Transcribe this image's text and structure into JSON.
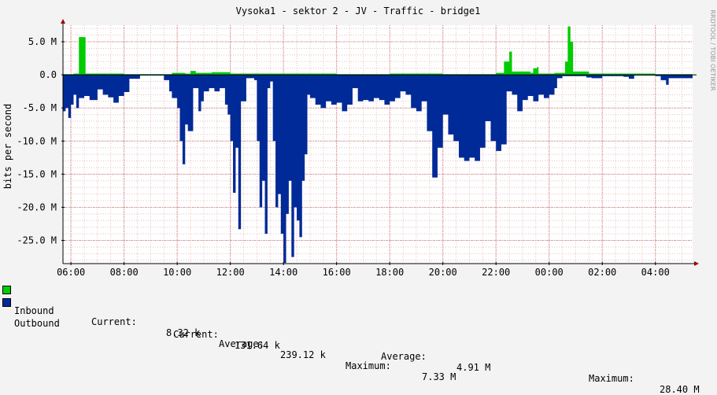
{
  "chart_data": {
    "type": "area",
    "title": "Vysoka1 - sektor 2 - JV - Traffic - bridge1",
    "ylabel": "bits per second",
    "watermark": "RRDTOOL / TOBI OETIKER",
    "ylim": [
      -28.5,
      7.5
    ],
    "yticks": [
      {
        "v": 5,
        "label": "5.0 M"
      },
      {
        "v": 0,
        "label": "0.0"
      },
      {
        "v": -5,
        "label": "-5.0 M"
      },
      {
        "v": -10,
        "label": "-10.0 M"
      },
      {
        "v": -15,
        "label": "-15.0 M"
      },
      {
        "v": -20,
        "label": "-20.0 M"
      },
      {
        "v": -25,
        "label": "-25.0 M"
      }
    ],
    "xlim": [
      5.7,
      29.4
    ],
    "xticks": [
      {
        "v": 6,
        "label": "06:00"
      },
      {
        "v": 8,
        "label": "08:00"
      },
      {
        "v": 10,
        "label": "10:00"
      },
      {
        "v": 12,
        "label": "12:00"
      },
      {
        "v": 14,
        "label": "14:00"
      },
      {
        "v": 16,
        "label": "16:00"
      },
      {
        "v": 18,
        "label": "18:00"
      },
      {
        "v": 20,
        "label": "20:00"
      },
      {
        "v": 22,
        "label": "22:00"
      },
      {
        "v": 24,
        "label": "00:00"
      },
      {
        "v": 26,
        "label": "02:00"
      },
      {
        "v": 28,
        "label": "04:00"
      }
    ],
    "series": [
      {
        "name": "Inbound",
        "color": "#00cc00",
        "points": [
          [
            5.7,
            0.1
          ],
          [
            6.1,
            0.2
          ],
          [
            6.3,
            5.7
          ],
          [
            6.45,
            5.7
          ],
          [
            6.55,
            0.2
          ],
          [
            7.5,
            0.2
          ],
          [
            8.0,
            0.1
          ],
          [
            9.4,
            0.1
          ],
          [
            9.8,
            0.3
          ],
          [
            10.3,
            0.2
          ],
          [
            10.5,
            0.6
          ],
          [
            10.7,
            0.3
          ],
          [
            11.3,
            0.4
          ],
          [
            12.0,
            0.2
          ],
          [
            14.0,
            0.2
          ],
          [
            16.0,
            0.1
          ],
          [
            18.0,
            0.2
          ],
          [
            20.0,
            0.1
          ],
          [
            22.0,
            0.3
          ],
          [
            22.3,
            2.0
          ],
          [
            22.5,
            3.5
          ],
          [
            22.6,
            0.5
          ],
          [
            23.3,
            0.3
          ],
          [
            23.4,
            1.0
          ],
          [
            23.55,
            1.2
          ],
          [
            23.6,
            0.2
          ],
          [
            24.2,
            0.3
          ],
          [
            24.5,
            0.3
          ],
          [
            24.6,
            2.0
          ],
          [
            24.7,
            7.3
          ],
          [
            24.8,
            5.0
          ],
          [
            24.9,
            0.5
          ],
          [
            25.5,
            0.2
          ],
          [
            28.0,
            0.1
          ],
          [
            29.4,
            0.0
          ]
        ]
      },
      {
        "name": "Outbound",
        "color": "#002a97",
        "points": [
          [
            5.7,
            -5.5
          ],
          [
            5.8,
            -5.0
          ],
          [
            5.9,
            -6.5
          ],
          [
            6.0,
            -4.5
          ],
          [
            6.1,
            -3.0
          ],
          [
            6.2,
            -5.0
          ],
          [
            6.3,
            -3.5
          ],
          [
            6.5,
            -3.2
          ],
          [
            6.7,
            -3.8
          ],
          [
            7.0,
            -2.2
          ],
          [
            7.2,
            -3.0
          ],
          [
            7.4,
            -3.4
          ],
          [
            7.6,
            -4.2
          ],
          [
            7.8,
            -3.2
          ],
          [
            8.0,
            -2.6
          ],
          [
            8.2,
            -0.6
          ],
          [
            8.6,
            -0.1
          ],
          [
            9.3,
            -0.1
          ],
          [
            9.5,
            -0.8
          ],
          [
            9.7,
            -2.5
          ],
          [
            9.8,
            -3.5
          ],
          [
            10.0,
            -5.0
          ],
          [
            10.1,
            -10.0
          ],
          [
            10.2,
            -13.5
          ],
          [
            10.3,
            -7.5
          ],
          [
            10.4,
            -8.5
          ],
          [
            10.6,
            -2.0
          ],
          [
            10.8,
            -5.5
          ],
          [
            10.9,
            -4.0
          ],
          [
            11.0,
            -2.5
          ],
          [
            11.2,
            -2.0
          ],
          [
            11.4,
            -2.5
          ],
          [
            11.6,
            -2.0
          ],
          [
            11.8,
            -4.5
          ],
          [
            11.9,
            -6.0
          ],
          [
            12.0,
            -10.0
          ],
          [
            12.1,
            -17.8
          ],
          [
            12.2,
            -11.0
          ],
          [
            12.3,
            -23.3
          ],
          [
            12.4,
            -4.0
          ],
          [
            12.6,
            -0.5
          ],
          [
            12.9,
            -0.8
          ],
          [
            13.0,
            -10.0
          ],
          [
            13.1,
            -20.0
          ],
          [
            13.2,
            -16.0
          ],
          [
            13.3,
            -24.0
          ],
          [
            13.4,
            -2.0
          ],
          [
            13.5,
            -1.0
          ],
          [
            13.6,
            -10.0
          ],
          [
            13.7,
            -20.0
          ],
          [
            13.8,
            -18.0
          ],
          [
            13.9,
            -24.0
          ],
          [
            14.0,
            -28.4
          ],
          [
            14.1,
            -21.0
          ],
          [
            14.2,
            -16.0
          ],
          [
            14.3,
            -27.5
          ],
          [
            14.4,
            -20.0
          ],
          [
            14.5,
            -22.0
          ],
          [
            14.6,
            -24.5
          ],
          [
            14.7,
            -16.0
          ],
          [
            14.8,
            -12.0
          ],
          [
            14.9,
            -3.0
          ],
          [
            15.0,
            -3.5
          ],
          [
            15.2,
            -4.5
          ],
          [
            15.4,
            -5.0
          ],
          [
            15.6,
            -4.0
          ],
          [
            15.8,
            -4.5
          ],
          [
            16.0,
            -4.2
          ],
          [
            16.2,
            -5.5
          ],
          [
            16.4,
            -4.5
          ],
          [
            16.6,
            -2.0
          ],
          [
            16.8,
            -4.0
          ],
          [
            17.0,
            -3.8
          ],
          [
            17.2,
            -4.0
          ],
          [
            17.4,
            -3.5
          ],
          [
            17.6,
            -3.8
          ],
          [
            17.8,
            -4.5
          ],
          [
            18.0,
            -4.0
          ],
          [
            18.2,
            -3.5
          ],
          [
            18.4,
            -2.5
          ],
          [
            18.6,
            -3.0
          ],
          [
            18.8,
            -5.0
          ],
          [
            19.0,
            -5.5
          ],
          [
            19.2,
            -4.0
          ],
          [
            19.4,
            -8.5
          ],
          [
            19.6,
            -15.5
          ],
          [
            19.8,
            -11.0
          ],
          [
            20.0,
            -6.0
          ],
          [
            20.2,
            -9.0
          ],
          [
            20.4,
            -10.0
          ],
          [
            20.6,
            -12.5
          ],
          [
            20.8,
            -13.0
          ],
          [
            21.0,
            -12.5
          ],
          [
            21.2,
            -13.0
          ],
          [
            21.4,
            -11.0
          ],
          [
            21.6,
            -7.0
          ],
          [
            21.8,
            -10.0
          ],
          [
            22.0,
            -11.5
          ],
          [
            22.2,
            -10.5
          ],
          [
            22.4,
            -2.5
          ],
          [
            22.6,
            -3.0
          ],
          [
            22.8,
            -5.5
          ],
          [
            23.0,
            -3.8
          ],
          [
            23.2,
            -3.2
          ],
          [
            23.4,
            -4.0
          ],
          [
            23.6,
            -3.0
          ],
          [
            23.8,
            -3.5
          ],
          [
            24.0,
            -3.0
          ],
          [
            24.2,
            -2.0
          ],
          [
            24.3,
            -0.5
          ],
          [
            24.5,
            -0.2
          ],
          [
            25.0,
            -0.2
          ],
          [
            25.4,
            -0.4
          ],
          [
            25.6,
            -0.5
          ],
          [
            26.0,
            -0.2
          ],
          [
            26.8,
            -0.3
          ],
          [
            27.0,
            -0.6
          ],
          [
            27.2,
            -0.1
          ],
          [
            28.0,
            -0.2
          ],
          [
            28.2,
            -0.8
          ],
          [
            28.4,
            -1.5
          ],
          [
            28.5,
            -0.5
          ],
          [
            29.4,
            0.0
          ]
        ]
      }
    ],
    "legend": [
      {
        "name": "Inbound",
        "color": "#00cc00",
        "current_label": "Current:",
        "current": "8.32 k",
        "average_label": "Average:",
        "average": "239.12 k",
        "maximum_label": "Maximum:",
        "maximum": "7.33 M"
      },
      {
        "name": "Outbound",
        "color": "#002a97",
        "current_label": "Current:",
        "current": "131.64 k",
        "average_label": "Average:",
        "average": "4.91 M",
        "maximum_label": "Maximum:",
        "maximum": "28.40 M"
      }
    ]
  }
}
